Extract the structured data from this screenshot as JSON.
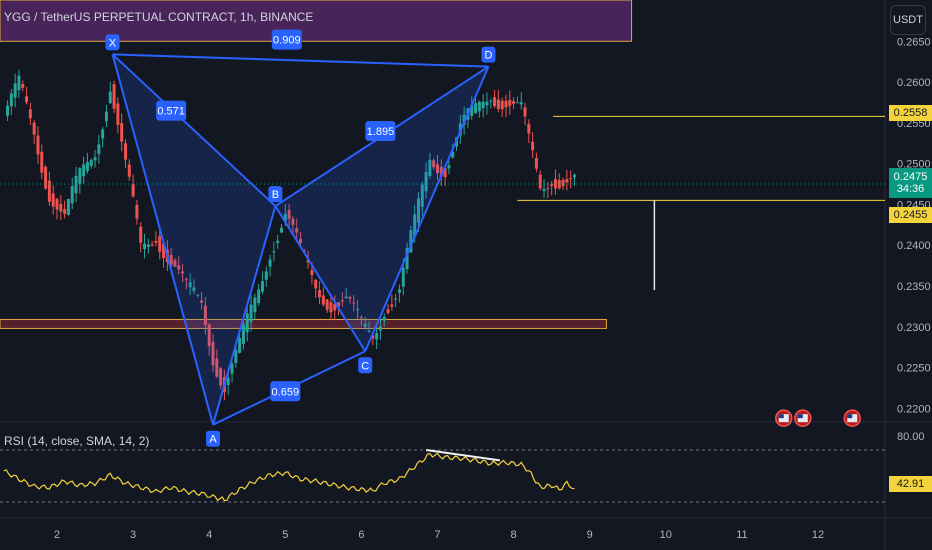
{
  "header": {
    "title": "YGG / TetherUS PERPETUAL CONTRACT, 1h, BINANCE",
    "currency_button": "USDT"
  },
  "colors": {
    "background": "#131722",
    "pattern_line": "#2962ff",
    "pattern_fill": "#2962ff",
    "candle_up": "#26a69a",
    "candle_down": "#ef5350",
    "level_line": "#f5d33b",
    "support_zone": "#f23645",
    "supply_zone": "#5b2a6e",
    "rsi_line": "#f5d33b",
    "current_price": "#089981"
  },
  "chart_data": {
    "type": "candlestick",
    "symbol": "YGG / TetherUS PERPETUAL CONTRACT",
    "interval": "1h",
    "exchange": "BINANCE",
    "y_ticks": [
      "0.2650",
      "0.2600",
      "0.2550",
      "0.2500",
      "0.2450",
      "0.2400",
      "0.2350",
      "0.2300",
      "0.2250",
      "0.2200"
    ],
    "ylim": [
      0.218,
      0.265
    ],
    "x_ticks": [
      "2",
      "3",
      "4",
      "5",
      "6",
      "7",
      "8",
      "9",
      "10",
      "11",
      "12"
    ],
    "xlim": [
      1.3,
      12.7
    ],
    "price_close_series": [
      [
        1.3,
        0.2555
      ],
      [
        1.5,
        0.259
      ],
      [
        1.7,
        0.254
      ],
      [
        1.9,
        0.247
      ],
      [
        2.1,
        0.243
      ],
      [
        2.3,
        0.248
      ],
      [
        2.5,
        0.252
      ],
      [
        2.7,
        0.26
      ],
      [
        2.9,
        0.249
      ],
      [
        3.1,
        0.2395
      ],
      [
        3.3,
        0.242
      ],
      [
        3.5,
        0.238
      ],
      [
        3.7,
        0.234
      ],
      [
        3.9,
        0.233
      ],
      [
        4.05,
        0.227
      ],
      [
        4.2,
        0.223
      ],
      [
        4.4,
        0.227
      ],
      [
        4.6,
        0.233
      ],
      [
        4.8,
        0.24
      ],
      [
        5.0,
        0.244
      ],
      [
        5.2,
        0.2385
      ],
      [
        5.4,
        0.235
      ],
      [
        5.6,
        0.2335
      ],
      [
        5.8,
        0.233
      ],
      [
        6.0,
        0.2295
      ],
      [
        6.15,
        0.229
      ],
      [
        6.3,
        0.233
      ],
      [
        6.5,
        0.2345
      ],
      [
        6.7,
        0.242
      ],
      [
        6.9,
        0.251
      ],
      [
        7.1,
        0.25
      ],
      [
        7.3,
        0.254
      ],
      [
        7.5,
        0.256
      ],
      [
        7.7,
        0.259
      ],
      [
        7.9,
        0.258
      ],
      [
        8.1,
        0.256
      ],
      [
        8.2,
        0.252
      ],
      [
        8.35,
        0.247
      ],
      [
        8.5,
        0.249
      ],
      [
        8.7,
        0.248
      ],
      [
        8.8,
        0.2475
      ]
    ],
    "price_levels": [
      {
        "label": "0.2558",
        "price": 0.2558
      },
      {
        "label": "0.2455",
        "price": 0.2455
      }
    ],
    "current_price": {
      "label": "0.2475",
      "countdown": "34:36",
      "price": 0.2475
    },
    "support_zone": {
      "from": 0.2298,
      "to": 0.2309
    },
    "supply_zone": {
      "from": 0.265,
      "to": 0.269
    },
    "target_projection": {
      "x": 9.85,
      "from": 0.2455,
      "to": 0.2345
    },
    "harmonic_pattern": {
      "points": [
        {
          "name": "X",
          "x": 2.73,
          "price": 0.2634
        },
        {
          "name": "A",
          "x": 4.05,
          "price": 0.218
        },
        {
          "name": "B",
          "x": 4.87,
          "price": 0.2448
        },
        {
          "name": "C",
          "x": 6.05,
          "price": 0.227
        },
        {
          "name": "D",
          "x": 7.67,
          "price": 0.2619
        }
      ],
      "ratios": [
        {
          "label": "0.909",
          "x": 5.02,
          "price": 0.2652
        },
        {
          "label": "0.571",
          "x": 3.5,
          "price": 0.2565
        },
        {
          "label": "1.895",
          "x": 6.25,
          "price": 0.254
        },
        {
          "label": "0.659",
          "x": 5.0,
          "price": 0.2221
        }
      ]
    },
    "event_markers": [
      {
        "x": 11.55,
        "price": 0.2188
      },
      {
        "x": 11.8,
        "price": 0.2188
      },
      {
        "x": 12.45,
        "price": 0.2188
      }
    ],
    "rsi": {
      "label": "RSI (14, close, SMA, 14, 2)",
      "upper_band": "80.00",
      "value": "42.91",
      "ylim": [
        28,
        92
      ],
      "series": [
        [
          1.3,
          60
        ],
        [
          1.5,
          52
        ],
        [
          1.7,
          45
        ],
        [
          1.9,
          44
        ],
        [
          2.1,
          50
        ],
        [
          2.3,
          46
        ],
        [
          2.5,
          48
        ],
        [
          2.7,
          56
        ],
        [
          2.9,
          48
        ],
        [
          3.1,
          44
        ],
        [
          3.3,
          40
        ],
        [
          3.5,
          44
        ],
        [
          3.7,
          40
        ],
        [
          3.9,
          38
        ],
        [
          4.05,
          35
        ],
        [
          4.2,
          32
        ],
        [
          4.4,
          42
        ],
        [
          4.6,
          50
        ],
        [
          4.8,
          56
        ],
        [
          5.0,
          58
        ],
        [
          5.2,
          52
        ],
        [
          5.4,
          50
        ],
        [
          5.6,
          47
        ],
        [
          5.8,
          44
        ],
        [
          6.0,
          42
        ],
        [
          6.15,
          41
        ],
        [
          6.3,
          48
        ],
        [
          6.5,
          52
        ],
        [
          6.7,
          64
        ],
        [
          6.9,
          76
        ],
        [
          7.1,
          73
        ],
        [
          7.3,
          72
        ],
        [
          7.5,
          70
        ],
        [
          7.7,
          67
        ],
        [
          7.9,
          68
        ],
        [
          8.1,
          66
        ],
        [
          8.2,
          60
        ],
        [
          8.35,
          44
        ],
        [
          8.5,
          46
        ],
        [
          8.6,
          42
        ],
        [
          8.7,
          48
        ],
        [
          8.8,
          42.9
        ]
      ],
      "divergence_line": [
        [
          6.85,
          80
        ],
        [
          7.82,
          70
        ]
      ]
    }
  }
}
